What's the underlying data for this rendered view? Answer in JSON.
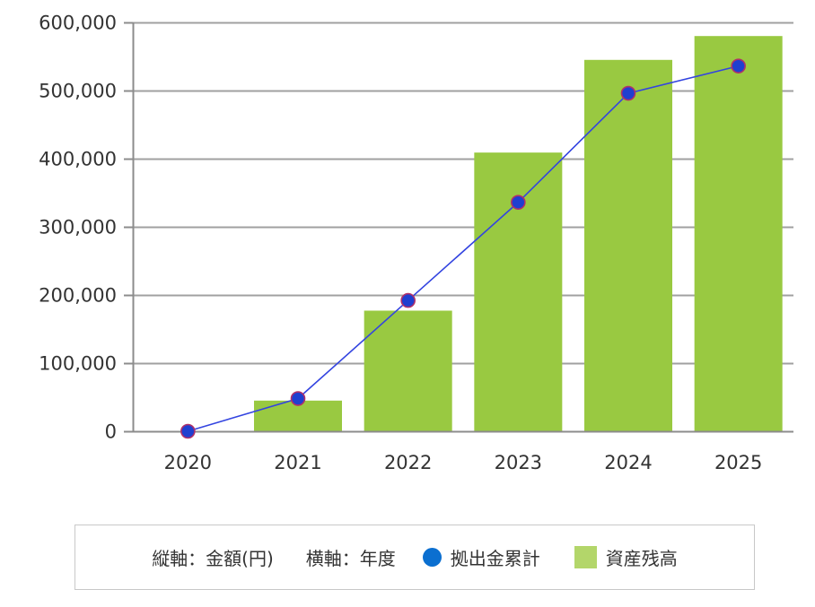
{
  "chart_data": {
    "type": "bar",
    "categories": [
      "2020",
      "2021",
      "2022",
      "2023",
      "2024",
      "2025"
    ],
    "series": [
      {
        "name": "資産残高",
        "type": "bar",
        "values": [
          0,
          45000,
          177000,
          409000,
          545000,
          580000
        ],
        "color": "#99c941"
      },
      {
        "name": "拠出金累計",
        "type": "line",
        "values": [
          0,
          48000,
          192000,
          336000,
          496000,
          536000
        ],
        "color": "#3344e0",
        "marker_color": "#1f3fd0",
        "marker_edge_color": "#b0306a"
      }
    ],
    "ylim": [
      0,
      600000
    ],
    "yticks": [
      0,
      100000,
      200000,
      300000,
      400000,
      500000,
      600000
    ],
    "ytick_labels": [
      "0",
      "100,000",
      "200,000",
      "300,000",
      "400,000",
      "500,000",
      "600,000"
    ],
    "grid": true,
    "grid_color": "#a0a0a0",
    "legend_position": "bottom"
  },
  "legend": {
    "y_axis_label": "縦軸：金額(円)",
    "x_axis_label": "横軸：年度",
    "line_series_label": "拠出金累計",
    "bar_series_label": "資産残高",
    "line_swatch_color": "#0b6fd0",
    "bar_swatch_color": "#b3d66a"
  }
}
